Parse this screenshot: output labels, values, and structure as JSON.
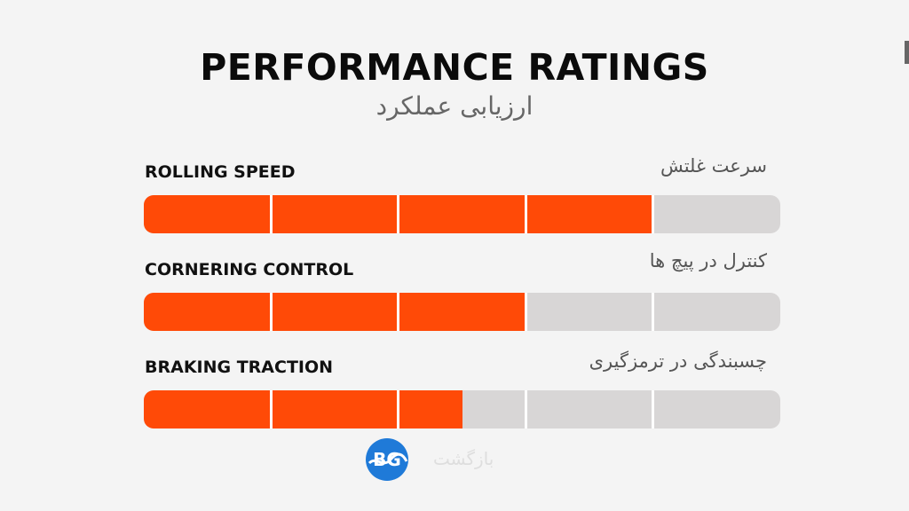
{
  "header": {
    "title": "PERFORMANCE RATINGS",
    "subtitle": "ارزیابی عملکرد"
  },
  "ratings": [
    {
      "label": "ROLLING SPEED",
      "label_fa": "سرعت غلتش",
      "level": 0.8
    },
    {
      "label": "CORNERING CONTROL",
      "label_fa": "کنترل در پیچ ها",
      "level": 0.6
    },
    {
      "label": "BRAKING TRACTION",
      "label_fa": "چسبندگی در ترمزگیری",
      "level": 0.5
    }
  ],
  "scale": {
    "segments": 5
  },
  "brand": {
    "logo_text": "BG",
    "watermark": "بازگشت"
  },
  "colors": {
    "fill": "#ff4a07",
    "track": "#d8d6d6",
    "divider": "#ffffff",
    "background": "#f4f4f4",
    "logo": "#1f7ad8"
  },
  "icons": {
    "logo": "bg-logo-icon"
  }
}
